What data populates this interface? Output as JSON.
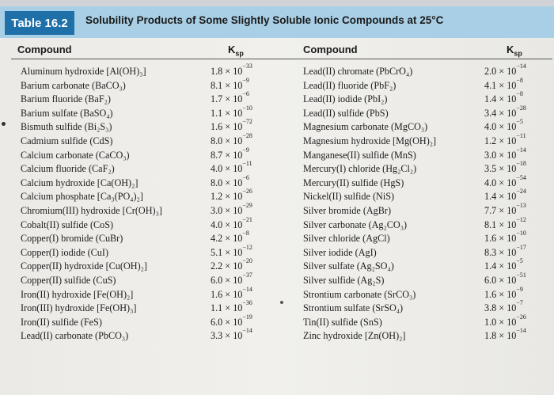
{
  "header": {
    "table_label": "Table 16.2",
    "title": "Solubility Products of Some Slightly Soluble Ionic Compounds at 25°C",
    "col_compound": "Compound",
    "col_ksp": "K",
    "col_ksp_sub": "sp"
  },
  "left_rows": [
    {
      "name": "Aluminum hydroxide [Al(OH)₃]",
      "ksp": "1.8 × 10",
      "exp": "−33"
    },
    {
      "name": "Barium carbonate (BaCO₃)",
      "ksp": "8.1 × 10",
      "exp": "−9"
    },
    {
      "name": "Barium fluoride (BaF₂)",
      "ksp": "1.7 × 10",
      "exp": "−6"
    },
    {
      "name": "Barium sulfate (BaSO₄)",
      "ksp": "1.1 × 10",
      "exp": "−10"
    },
    {
      "name": "Bismuth sulfide (Bi₂S₃)",
      "ksp": "1.6 × 10",
      "exp": "−72"
    },
    {
      "name": "Cadmium sulfide (CdS)",
      "ksp": "8.0 × 10",
      "exp": "−28"
    },
    {
      "name": "Calcium carbonate (CaCO₃)",
      "ksp": "8.7 × 10",
      "exp": "−9"
    },
    {
      "name": "Calcium fluoride (CaF₂)",
      "ksp": "4.0 × 10",
      "exp": "−11"
    },
    {
      "name": "Calcium hydroxide [Ca(OH)₂]",
      "ksp": "8.0 × 10",
      "exp": "−6"
    },
    {
      "name": "Calcium phosphate [Ca₃(PO₄)₂]",
      "ksp": "1.2 × 10",
      "exp": "−26"
    },
    {
      "name": "Chromium(III) hydroxide [Cr(OH)₃]",
      "ksp": "3.0 × 10",
      "exp": "−29"
    },
    {
      "name": "Cobalt(II) sulfide (CoS)",
      "ksp": "4.0 × 10",
      "exp": "−21"
    },
    {
      "name": "Copper(I) bromide (CuBr)",
      "ksp": "4.2 × 10",
      "exp": "−8"
    },
    {
      "name": "Copper(I) iodide (CuI)",
      "ksp": "5.1 × 10",
      "exp": "−12"
    },
    {
      "name": "Copper(II) hydroxide [Cu(OH)₂]",
      "ksp": "2.2 × 10",
      "exp": "−20"
    },
    {
      "name": "Copper(II) sulfide (CuS)",
      "ksp": "6.0 × 10",
      "exp": "−37"
    },
    {
      "name": "Iron(II) hydroxide [Fe(OH)₂]",
      "ksp": "1.6 × 10",
      "exp": "−14"
    },
    {
      "name": "Iron(III) hydroxide [Fe(OH)₃]",
      "ksp": "1.1 × 10",
      "exp": "−36"
    },
    {
      "name": "Iron(II) sulfide (FeS)",
      "ksp": "6.0 × 10",
      "exp": "−19"
    },
    {
      "name": "Lead(II) carbonate (PbCO₃)",
      "ksp": "3.3 × 10",
      "exp": "−14"
    }
  ],
  "right_rows": [
    {
      "name": "Lead(II) chromate (PbCrO₄)",
      "ksp": "2.0 × 10",
      "exp": "−14"
    },
    {
      "name": "Lead(II) fluoride (PbF₂)",
      "ksp": "4.1 × 10",
      "exp": "−8"
    },
    {
      "name": "Lead(II) iodide (PbI₂)",
      "ksp": "1.4 × 10",
      "exp": "−8"
    },
    {
      "name": "Lead(II) sulfide (PbS)",
      "ksp": "3.4 × 10",
      "exp": "−28"
    },
    {
      "name": "Magnesium carbonate (MgCO₃)",
      "ksp": "4.0 × 10",
      "exp": "−5"
    },
    {
      "name": "Magnesium hydroxide [Mg(OH)₂]",
      "ksp": "1.2 × 10",
      "exp": "−11"
    },
    {
      "name": "Manganese(II) sulfide (MnS)",
      "ksp": "3.0 × 10",
      "exp": "−14"
    },
    {
      "name": "Mercury(I) chloride (Hg₂Cl₂)",
      "ksp": "3.5 × 10",
      "exp": "−18"
    },
    {
      "name": "Mercury(II) sulfide (HgS)",
      "ksp": "4.0 × 10",
      "exp": "−54"
    },
    {
      "name": "Nickel(II) sulfide (NiS)",
      "ksp": "1.4 × 10",
      "exp": "−24"
    },
    {
      "name": "Silver bromide (AgBr)",
      "ksp": "7.7 × 10",
      "exp": "−13"
    },
    {
      "name": "Silver carbonate (Ag₂CO₃)",
      "ksp": "8.1 × 10",
      "exp": "−12"
    },
    {
      "name": "Silver chloride (AgCl)",
      "ksp": "1.6 × 10",
      "exp": "−10"
    },
    {
      "name": "Silver iodide (AgI)",
      "ksp": "8.3 × 10",
      "exp": "−17"
    },
    {
      "name": "Silver sulfate (Ag₂SO₄)",
      "ksp": "1.4 × 10",
      "exp": "−5"
    },
    {
      "name": "Silver sulfide (Ag₂S)",
      "ksp": "6.0 × 10",
      "exp": "−51"
    },
    {
      "name": "Strontium carbonate (SrCO₃)",
      "ksp": "1.6 × 10",
      "exp": "−9"
    },
    {
      "name": "Strontium sulfate (SrSO₄)",
      "ksp": "3.8 × 10",
      "exp": "−7"
    },
    {
      "name": "Tin(II) sulfide (SnS)",
      "ksp": "1.0 × 10",
      "exp": "−26"
    },
    {
      "name": "Zinc hydroxide [Zn(OH)₂]",
      "ksp": "1.8 × 10",
      "exp": "−14"
    }
  ]
}
